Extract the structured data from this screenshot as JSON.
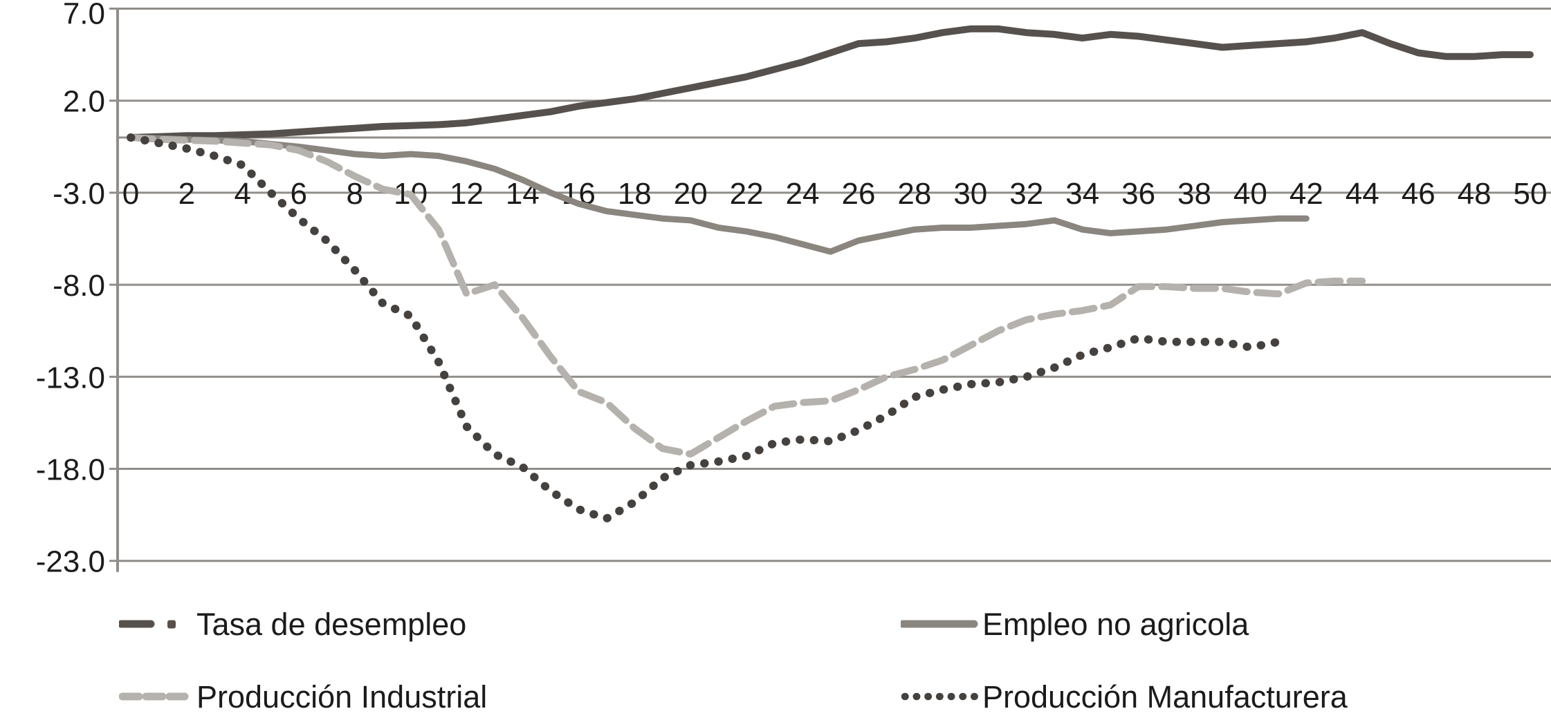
{
  "chart_data": {
    "type": "line",
    "title": "",
    "xlabel": "",
    "ylabel": "",
    "xlim": [
      0,
      50.8
    ],
    "ylim": [
      -23,
      7
    ],
    "grid": "horizontal",
    "x_axis": {
      "ticks": [
        0,
        2,
        4,
        6,
        8,
        10,
        12,
        14,
        16,
        18,
        20,
        22,
        24,
        26,
        28,
        30,
        32,
        34,
        36,
        38,
        40,
        42,
        44,
        46,
        48,
        50
      ],
      "label_row_value": -3.0,
      "note": "x tick labels sit mid-chart, centered on the -3.0 gridline"
    },
    "y_axis": {
      "ticks": [
        7.0,
        2.0,
        -3.0,
        -8.0,
        -13.0,
        -18.0,
        -23.0
      ],
      "labels": [
        "7.0",
        "2.0",
        "-3.0",
        "-8.0",
        "-13.0",
        "-18.0",
        "-23.0"
      ],
      "zero_axis_line": true
    },
    "x_step": 1,
    "series": [
      {
        "name": "Tasa de desempleo",
        "style": "solid",
        "legend_glyph": "dash-dot",
        "color": "#57514d",
        "width": 10,
        "values": [
          0,
          0.05,
          0.1,
          0.1,
          0.15,
          0.2,
          0.3,
          0.4,
          0.5,
          0.6,
          0.65,
          0.7,
          0.8,
          1.0,
          1.2,
          1.4,
          1.7,
          1.9,
          2.1,
          2.4,
          2.7,
          3.0,
          3.3,
          3.7,
          4.1,
          4.6,
          5.1,
          5.2,
          5.4,
          5.7,
          5.9,
          5.9,
          5.7,
          5.6,
          5.4,
          5.6,
          5.5,
          5.3,
          5.1,
          4.9,
          5.0,
          5.1,
          5.2,
          5.4,
          5.7,
          5.1,
          4.6,
          4.4,
          4.4,
          4.5,
          4.5
        ]
      },
      {
        "name": "Empleo no agricola",
        "style": "solid",
        "legend_glyph": "solid",
        "color": "#8b857f",
        "width": 9,
        "values": [
          0,
          -0.05,
          -0.1,
          -0.15,
          -0.2,
          -0.35,
          -0.5,
          -0.7,
          -0.9,
          -1.0,
          -0.9,
          -1.0,
          -1.3,
          -1.7,
          -2.3,
          -3.0,
          -3.6,
          -4.0,
          -4.2,
          -4.4,
          -4.5,
          -4.9,
          -5.1,
          -5.4,
          -5.8,
          -6.2,
          -5.6,
          -5.3,
          -5.0,
          -4.9,
          -4.9,
          -4.8,
          -4.7,
          -4.5,
          -5.0,
          -5.2,
          -5.1,
          -5.0,
          -4.8,
          -4.6,
          -4.5,
          -4.4,
          -4.4
        ]
      },
      {
        "name": "Producción Industrial",
        "style": "dashed",
        "legend_glyph": "dashed",
        "color": "#b5b1ad",
        "width": 10,
        "values": [
          0,
          -0.1,
          -0.15,
          -0.2,
          -0.3,
          -0.4,
          -0.7,
          -1.3,
          -2.1,
          -2.8,
          -3.1,
          -5.0,
          -8.5,
          -8.0,
          -9.8,
          -11.9,
          -13.8,
          -14.4,
          -15.8,
          -16.9,
          -17.2,
          -16.3,
          -15.4,
          -14.6,
          -14.4,
          -14.3,
          -13.7,
          -13.0,
          -12.6,
          -12.1,
          -11.3,
          -10.5,
          -9.9,
          -9.6,
          -9.4,
          -9.1,
          -8.1,
          -8.1,
          -8.2,
          -8.2,
          -8.4,
          -8.5,
          -7.9,
          -7.8,
          -7.8
        ]
      },
      {
        "name": "Producción Manufacturera",
        "style": "dotted",
        "legend_glyph": "dotted",
        "color": "#45413f",
        "width": 12,
        "values": [
          0,
          -0.3,
          -0.6,
          -1.0,
          -1.5,
          -3.0,
          -4.4,
          -5.6,
          -7.2,
          -9.0,
          -9.7,
          -12.2,
          -15.7,
          -17.2,
          -17.9,
          -19.2,
          -20.2,
          -20.7,
          -19.8,
          -18.5,
          -17.8,
          -17.6,
          -17.3,
          -16.6,
          -16.4,
          -16.5,
          -15.9,
          -15.1,
          -14.1,
          -13.7,
          -13.4,
          -13.3,
          -13.0,
          -12.5,
          -11.8,
          -11.4,
          -10.9,
          -11.1,
          -11.1,
          -11.1,
          -11.4,
          -11.1
        ]
      }
    ],
    "legend_position": "below, two rows x two columns",
    "colors": {
      "grid": "#908d8a",
      "axis": "#908d8a",
      "text": "#1d1b1a",
      "background": "#ffffff"
    }
  },
  "legend": {
    "items": [
      {
        "label": "Tasa de desempleo"
      },
      {
        "label": "Empleo no agricola"
      },
      {
        "label": "Producción Industrial"
      },
      {
        "label": "Producción Manufacturera"
      }
    ]
  }
}
